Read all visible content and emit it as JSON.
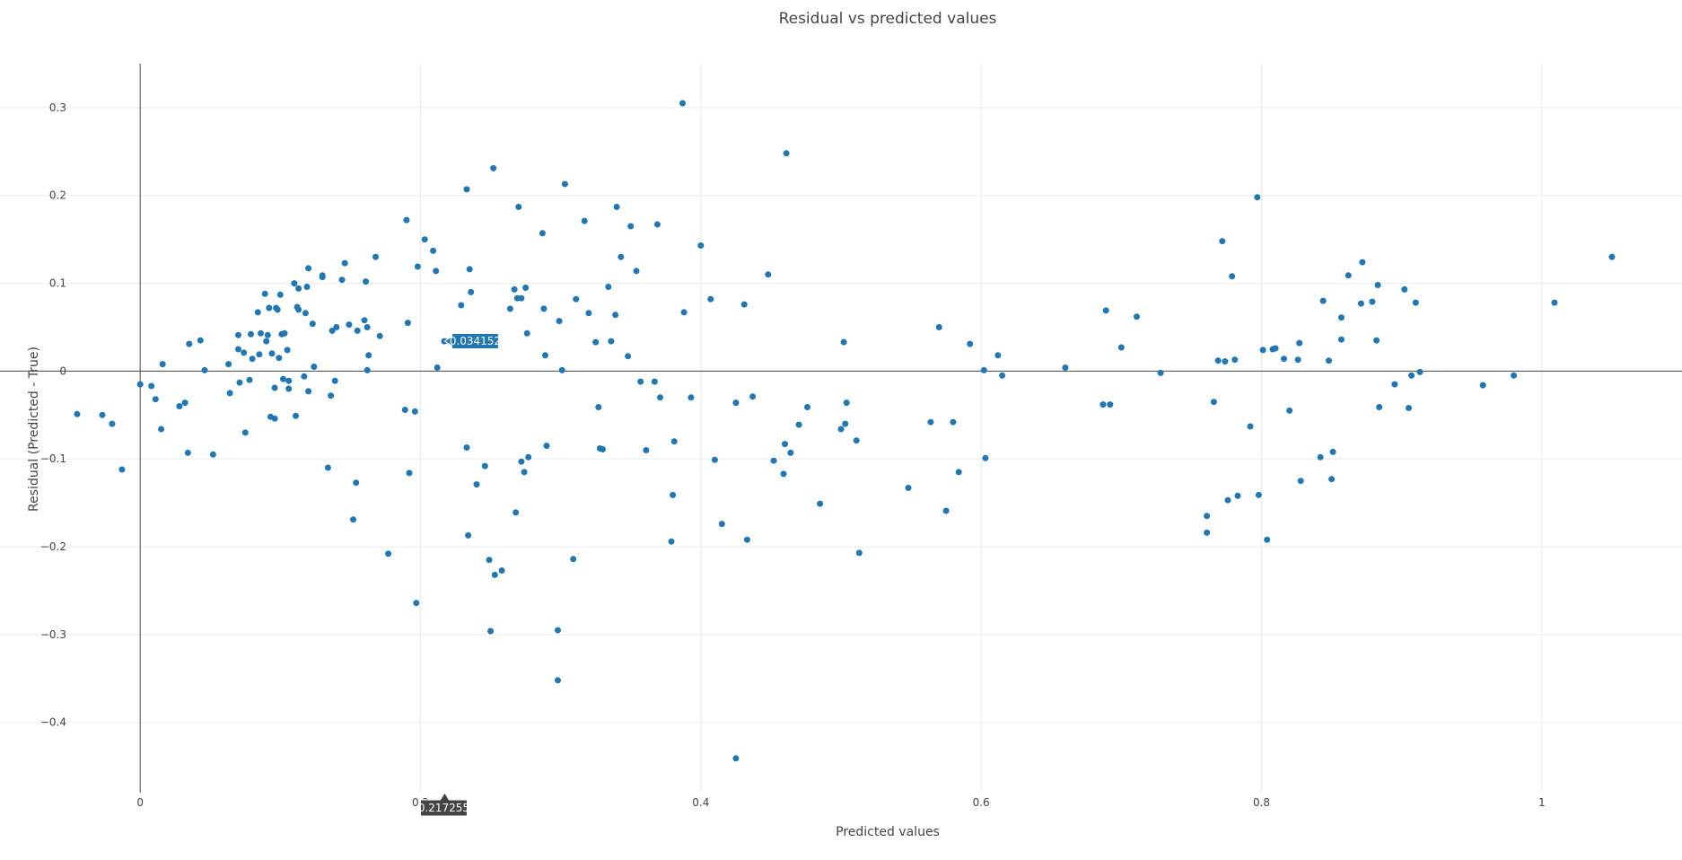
{
  "chart_data": {
    "type": "scatter",
    "title": "Residual vs predicted values",
    "xlabel": "Predicted values",
    "ylabel": "Residual (Predicted - True)",
    "xlim": [
      -0.1,
      1.1
    ],
    "ylim": [
      -0.48,
      0.35
    ],
    "xticks": [
      0,
      0.2,
      0.4,
      0.6,
      0.8,
      1
    ],
    "xtick_labels": [
      "0",
      "0.2",
      "0.4",
      "0.6",
      "0.8",
      "1"
    ],
    "yticks": [
      0.3,
      0.2,
      0.1,
      0,
      -0.1,
      -0.2,
      -0.3,
      -0.4
    ],
    "ytick_labels": [
      "0.3",
      "0.2",
      "0.1",
      "0",
      "−0.1",
      "−0.2",
      "−0.3",
      "−0.4"
    ],
    "grid": true,
    "marker_color": "#1f77b4",
    "hover": {
      "x": 0.217255,
      "y": 0.034152,
      "x_label": "0.217255",
      "y_label": "0.034152"
    },
    "points": [
      [
        -0.045,
        -0.049
      ],
      [
        -0.027,
        -0.05
      ],
      [
        -0.02,
        -0.06
      ],
      [
        -0.013,
        -0.112
      ],
      [
        0,
        -0.015
      ],
      [
        0.008,
        -0.017
      ],
      [
        0.011,
        -0.032
      ],
      [
        0.015,
        -0.066
      ],
      [
        0.016,
        0.008
      ],
      [
        0.028,
        -0.04
      ],
      [
        0.032,
        -0.036
      ],
      [
        0.034,
        -0.093
      ],
      [
        0.035,
        0.031
      ],
      [
        0.043,
        0.035
      ],
      [
        0.046,
        0.001
      ],
      [
        0.052,
        -0.095
      ],
      [
        0.063,
        0.008
      ],
      [
        0.064,
        -0.025
      ],
      [
        0.07,
        0.041
      ],
      [
        0.07,
        0.025
      ],
      [
        0.071,
        -0.013
      ],
      [
        0.074,
        0.021
      ],
      [
        0.075,
        -0.07
      ],
      [
        0.078,
        -0.01
      ],
      [
        0.079,
        0.042
      ],
      [
        0.08,
        0.014
      ],
      [
        0.084,
        0.067
      ],
      [
        0.085,
        0.019
      ],
      [
        0.086,
        0.043
      ],
      [
        0.089,
        0.088
      ],
      [
        0.09,
        0.034
      ],
      [
        0.091,
        0.041
      ],
      [
        0.092,
        0.072
      ],
      [
        0.093,
        -0.052
      ],
      [
        0.094,
        0.02
      ],
      [
        0.096,
        -0.054
      ],
      [
        0.096,
        -0.019
      ],
      [
        0.097,
        0.072
      ],
      [
        0.098,
        0.07
      ],
      [
        0.099,
        0.015
      ],
      [
        0.1,
        0.087
      ],
      [
        0.101,
        0.042
      ],
      [
        0.102,
        -0.009
      ],
      [
        0.103,
        0.043
      ],
      [
        0.105,
        0.024
      ],
      [
        0.106,
        -0.02
      ],
      [
        0.106,
        -0.011
      ],
      [
        0.11,
        0.1
      ],
      [
        0.111,
        -0.051
      ],
      [
        0.112,
        0.073
      ],
      [
        0.113,
        0.07
      ],
      [
        0.113,
        0.094
      ],
      [
        0.117,
        -0.006
      ],
      [
        0.118,
        0.066
      ],
      [
        0.119,
        0.096
      ],
      [
        0.12,
        0.117
      ],
      [
        0.12,
        -0.023
      ],
      [
        0.123,
        0.054
      ],
      [
        0.124,
        0.005
      ],
      [
        0.13,
        0.107
      ],
      [
        0.13,
        0.109
      ],
      [
        0.134,
        -0.11
      ],
      [
        0.136,
        -0.028
      ],
      [
        0.137,
        0.046
      ],
      [
        0.139,
        -0.011
      ],
      [
        0.14,
        0.05
      ],
      [
        0.144,
        0.104
      ],
      [
        0.146,
        0.123
      ],
      [
        0.149,
        0.053
      ],
      [
        0.152,
        -0.169
      ],
      [
        0.154,
        -0.127
      ],
      [
        0.155,
        0.046
      ],
      [
        0.16,
        0.058
      ],
      [
        0.161,
        0.102
      ],
      [
        0.162,
        0.05
      ],
      [
        0.162,
        0.001
      ],
      [
        0.163,
        0.018
      ],
      [
        0.168,
        0.13
      ],
      [
        0.171,
        0.04
      ],
      [
        0.177,
        -0.208
      ],
      [
        0.189,
        -0.044
      ],
      [
        0.19,
        0.172
      ],
      [
        0.191,
        0.055
      ],
      [
        0.192,
        -0.116
      ],
      [
        0.196,
        -0.046
      ],
      [
        0.197,
        -0.264
      ],
      [
        0.198,
        0.119
      ],
      [
        0.203,
        0.15
      ],
      [
        0.209,
        0.137
      ],
      [
        0.211,
        0.114
      ],
      [
        0.212,
        0.004
      ],
      [
        0.217,
        0.034
      ],
      [
        0.229,
        0.075
      ],
      [
        0.233,
        0.207
      ],
      [
        0.233,
        -0.087
      ],
      [
        0.234,
        -0.187
      ],
      [
        0.235,
        0.116
      ],
      [
        0.236,
        0.09
      ],
      [
        0.24,
        -0.129
      ],
      [
        0.246,
        -0.108
      ],
      [
        0.249,
        -0.215
      ],
      [
        0.25,
        -0.296
      ],
      [
        0.252,
        0.231
      ],
      [
        0.253,
        -0.232
      ],
      [
        0.258,
        -0.227
      ],
      [
        0.264,
        0.071
      ],
      [
        0.267,
        0.093
      ],
      [
        0.268,
        -0.161
      ],
      [
        0.269,
        0.083
      ],
      [
        0.27,
        0.187
      ],
      [
        0.272,
        0.083
      ],
      [
        0.272,
        -0.103
      ],
      [
        0.274,
        -0.115
      ],
      [
        0.275,
        0.095
      ],
      [
        0.276,
        0.043
      ],
      [
        0.277,
        -0.098
      ],
      [
        0.287,
        0.157
      ],
      [
        0.288,
        0.071
      ],
      [
        0.289,
        0.018
      ],
      [
        0.29,
        -0.085
      ],
      [
        0.298,
        -0.295
      ],
      [
        0.298,
        -0.352
      ],
      [
        0.299,
        0.057
      ],
      [
        0.301,
        0.001
      ],
      [
        0.303,
        0.213
      ],
      [
        0.309,
        -0.214
      ],
      [
        0.311,
        0.082
      ],
      [
        0.317,
        0.171
      ],
      [
        0.32,
        0.066
      ],
      [
        0.325,
        0.033
      ],
      [
        0.327,
        -0.041
      ],
      [
        0.328,
        -0.088
      ],
      [
        0.33,
        -0.089
      ],
      [
        0.334,
        0.096
      ],
      [
        0.336,
        0.034
      ],
      [
        0.339,
        0.064
      ],
      [
        0.34,
        0.187
      ],
      [
        0.343,
        0.13
      ],
      [
        0.348,
        0.017
      ],
      [
        0.35,
        0.165
      ],
      [
        0.354,
        0.114
      ],
      [
        0.357,
        -0.012
      ],
      [
        0.361,
        -0.09
      ],
      [
        0.367,
        -0.012
      ],
      [
        0.369,
        0.167
      ],
      [
        0.371,
        -0.03
      ],
      [
        0.379,
        -0.194
      ],
      [
        0.38,
        -0.141
      ],
      [
        0.381,
        -0.08
      ],
      [
        0.387,
        0.305
      ],
      [
        0.388,
        0.067
      ],
      [
        0.393,
        -0.03
      ],
      [
        0.4,
        0.143
      ],
      [
        0.407,
        0.082
      ],
      [
        0.41,
        -0.101
      ],
      [
        0.415,
        -0.174
      ],
      [
        0.425,
        -0.036
      ],
      [
        0.425,
        -0.441
      ],
      [
        0.431,
        0.076
      ],
      [
        0.433,
        -0.192
      ],
      [
        0.437,
        -0.029
      ],
      [
        0.448,
        0.11
      ],
      [
        0.452,
        -0.102
      ],
      [
        0.459,
        -0.117
      ],
      [
        0.46,
        -0.083
      ],
      [
        0.461,
        0.248
      ],
      [
        0.464,
        -0.093
      ],
      [
        0.47,
        -0.061
      ],
      [
        0.476,
        -0.041
      ],
      [
        0.485,
        -0.151
      ],
      [
        0.5,
        -0.066
      ],
      [
        0.502,
        0.033
      ],
      [
        0.503,
        -0.06
      ],
      [
        0.504,
        -0.036
      ],
      [
        0.511,
        -0.079
      ],
      [
        0.513,
        -0.207
      ],
      [
        0.548,
        -0.133
      ],
      [
        0.564,
        -0.058
      ],
      [
        0.57,
        0.05
      ],
      [
        0.575,
        -0.159
      ],
      [
        0.58,
        -0.058
      ],
      [
        0.584,
        -0.115
      ],
      [
        0.592,
        0.031
      ],
      [
        0.602,
        0.001
      ],
      [
        0.603,
        -0.099
      ],
      [
        0.612,
        0.018
      ],
      [
        0.615,
        -0.005
      ],
      [
        0.66,
        0.004
      ],
      [
        0.687,
        -0.038
      ],
      [
        0.689,
        0.069
      ],
      [
        0.692,
        -0.038
      ],
      [
        0.7,
        0.027
      ],
      [
        0.711,
        0.062
      ],
      [
        0.728,
        -0.002
      ],
      [
        0.761,
        -0.184
      ],
      [
        0.761,
        -0.165
      ],
      [
        0.766,
        -0.035
      ],
      [
        0.769,
        0.012
      ],
      [
        0.772,
        0.148
      ],
      [
        0.774,
        0.011
      ],
      [
        0.776,
        -0.147
      ],
      [
        0.779,
        0.108
      ],
      [
        0.781,
        0.013
      ],
      [
        0.783,
        -0.142
      ],
      [
        0.792,
        -0.063
      ],
      [
        0.797,
        0.198
      ],
      [
        0.798,
        -0.141
      ],
      [
        0.801,
        0.024
      ],
      [
        0.804,
        -0.192
      ],
      [
        0.808,
        0.025
      ],
      [
        0.81,
        0.026
      ],
      [
        0.816,
        0.014
      ],
      [
        0.82,
        -0.045
      ],
      [
        0.826,
        0.013
      ],
      [
        0.827,
        0.032
      ],
      [
        0.828,
        -0.125
      ],
      [
        0.842,
        -0.098
      ],
      [
        0.844,
        0.08
      ],
      [
        0.848,
        0.012
      ],
      [
        0.85,
        -0.123
      ],
      [
        0.851,
        -0.092
      ],
      [
        0.857,
        0.036
      ],
      [
        0.857,
        0.061
      ],
      [
        0.862,
        0.109
      ],
      [
        0.871,
        0.077
      ],
      [
        0.872,
        0.124
      ],
      [
        0.879,
        0.079
      ],
      [
        0.882,
        0.035
      ],
      [
        0.883,
        0.098
      ],
      [
        0.884,
        -0.041
      ],
      [
        0.895,
        -0.015
      ],
      [
        0.902,
        0.093
      ],
      [
        0.905,
        -0.042
      ],
      [
        0.907,
        -0.005
      ],
      [
        0.91,
        0.078
      ],
      [
        0.913,
        -0.001
      ],
      [
        0.958,
        -0.016
      ],
      [
        0.98,
        -0.005
      ],
      [
        1.009,
        0.078
      ],
      [
        1.05,
        0.13
      ]
    ]
  }
}
